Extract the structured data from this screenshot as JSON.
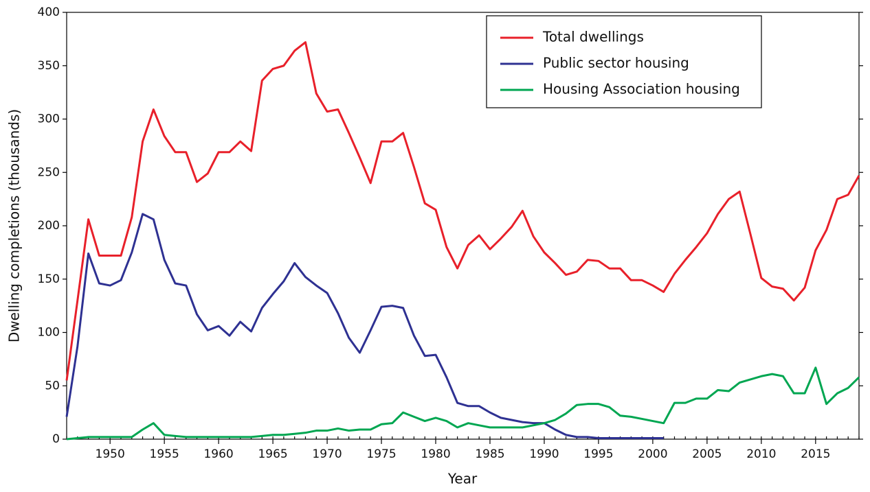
{
  "chart_data": {
    "type": "line",
    "xlabel": "Year",
    "ylabel": "Dwelling completions (thousands)",
    "x": [
      1946,
      1947,
      1948,
      1949,
      1950,
      1951,
      1952,
      1953,
      1954,
      1955,
      1956,
      1957,
      1958,
      1959,
      1960,
      1961,
      1962,
      1963,
      1964,
      1965,
      1966,
      1967,
      1968,
      1969,
      1970,
      1971,
      1972,
      1973,
      1974,
      1975,
      1976,
      1977,
      1978,
      1979,
      1980,
      1981,
      1982,
      1983,
      1984,
      1985,
      1986,
      1987,
      1988,
      1989,
      1990,
      1991,
      1992,
      1993,
      1994,
      1995,
      1996,
      1997,
      1998,
      1999,
      2000,
      2001,
      2002,
      2003,
      2004,
      2005,
      2006,
      2007,
      2008,
      2009,
      2010,
      2011,
      2012,
      2013,
      2014,
      2015,
      2016,
      2017,
      2018,
      2019
    ],
    "series": [
      {
        "name": "Total dwellings",
        "color": "#e8202a",
        "values": [
          55,
          130,
          206,
          172,
          172,
          172,
          208,
          279,
          309,
          284,
          269,
          269,
          241,
          249,
          269,
          269,
          279,
          270,
          336,
          347,
          350,
          364,
          372,
          324,
          307,
          309,
          287,
          264,
          240,
          279,
          279,
          287,
          255,
          221,
          215,
          180,
          160,
          182,
          191,
          178,
          188,
          199,
          214,
          190,
          175,
          165,
          154,
          157,
          168,
          167,
          160,
          160,
          149,
          149,
          144,
          138,
          155,
          168,
          180,
          193,
          211,
          225,
          232,
          192,
          151,
          143,
          141,
          130,
          142,
          177,
          196,
          225,
          229,
          247
        ]
      },
      {
        "name": "Public sector housing",
        "color": "#2e3192",
        "values": [
          21,
          87,
          174,
          146,
          144,
          149,
          175,
          211,
          206,
          168,
          146,
          144,
          117,
          102,
          106,
          97,
          110,
          101,
          123,
          136,
          148,
          165,
          152,
          144,
          137,
          118,
          95,
          81,
          102,
          124,
          125,
          123,
          97,
          78,
          79,
          58,
          34,
          31,
          31,
          25,
          20,
          18,
          16,
          15,
          15,
          9,
          4,
          2,
          2,
          1,
          1,
          1,
          1,
          1,
          1,
          1,
          null,
          null,
          null,
          null,
          null,
          null,
          null,
          null,
          null,
          null,
          null,
          null,
          null,
          null,
          null,
          null,
          null,
          null
        ]
      },
      {
        "name": "Housing Association housing",
        "color": "#00a651",
        "values": [
          0,
          1,
          2,
          2,
          2,
          2,
          2,
          9,
          15,
          4,
          3,
          2,
          2,
          2,
          2,
          2,
          2,
          2,
          3,
          4,
          4,
          5,
          6,
          8,
          8,
          10,
          8,
          9,
          9,
          14,
          15,
          25,
          21,
          17,
          20,
          17,
          11,
          15,
          13,
          11,
          11,
          11,
          11,
          13,
          15,
          18,
          24,
          32,
          33,
          33,
          30,
          22,
          21,
          19,
          17,
          15,
          34,
          34,
          38,
          38,
          46,
          45,
          53,
          56,
          59,
          61,
          59,
          43,
          43,
          67,
          33,
          43,
          48,
          58
        ]
      }
    ],
    "xlim": [
      1946,
      2019
    ],
    "xticks": [
      1950,
      1955,
      1960,
      1965,
      1970,
      1975,
      1980,
      1985,
      1990,
      1995,
      2000,
      2005,
      2010,
      2015
    ],
    "ylim": [
      0,
      400
    ],
    "yticks": [
      0,
      50,
      100,
      150,
      200,
      250,
      300,
      350,
      400
    ],
    "legend": "upper right",
    "grid": false
  }
}
